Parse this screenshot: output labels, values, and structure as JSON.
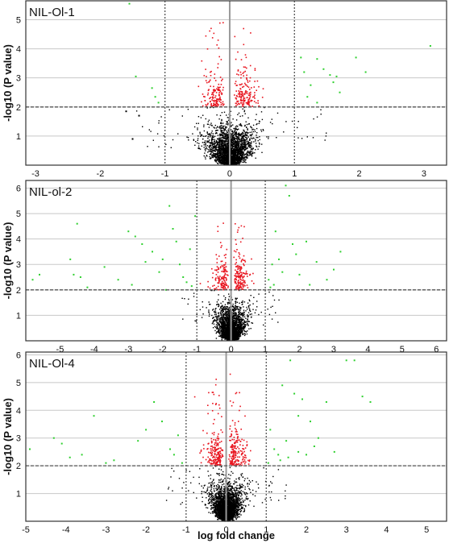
{
  "figure": {
    "ylabel": "-log10 (P value)",
    "xlabel": "log fold change"
  },
  "colors": {
    "background": "#ffffff",
    "grid": "#c8c8c8",
    "frame": "#333333",
    "zero_line": "#9a9a9a",
    "threshold_line": "#555555",
    "not_significant": "#000000",
    "significant_p": "#e8141e",
    "significant_p_and_fc": "#2fd02f"
  },
  "chart_data": [
    {
      "type": "scatter",
      "title": "NIL-Ol-1",
      "xlim": [
        -3.15,
        3.35
      ],
      "ylim": [
        0,
        5.65
      ],
      "x_ticks": [
        "-3",
        "-2",
        "-1",
        "0",
        "1",
        "2",
        "3"
      ],
      "x_tick_values": [
        -3,
        -2,
        -1,
        0,
        1,
        2,
        3
      ],
      "y_ticks": [
        "1",
        "2",
        "3",
        "4",
        "5"
      ],
      "y_tick_values": [
        1,
        2,
        3,
        4,
        5
      ],
      "grid": true,
      "fc_threshold": [
        -1,
        1
      ],
      "p_threshold": 2,
      "cloud": {
        "n_total": 2600,
        "n_sig": 320,
        "width": 0.35,
        "max_y": 4.9
      },
      "outlier_points": [
        [
          -1.55,
          5.55
        ],
        [
          -1.45,
          3.05
        ],
        [
          -1.2,
          2.65
        ],
        [
          -1.15,
          2.35
        ],
        [
          -1.1,
          2.15
        ],
        [
          -1.6,
          1.85
        ],
        [
          -1.4,
          1.7
        ],
        [
          -1.5,
          0.9
        ],
        [
          1.1,
          3.7
        ],
        [
          1.15,
          3.2
        ],
        [
          1.25,
          2.75
        ],
        [
          1.35,
          3.65
        ],
        [
          1.45,
          3.3
        ],
        [
          1.55,
          3.1
        ],
        [
          1.6,
          2.85
        ],
        [
          1.65,
          3.05
        ],
        [
          1.7,
          2.5
        ],
        [
          1.2,
          2.35
        ],
        [
          1.35,
          2.15
        ],
        [
          1.95,
          3.7
        ],
        [
          2.1,
          3.2
        ],
        [
          3.1,
          4.1
        ]
      ]
    },
    {
      "type": "scatter",
      "title": "NIL-ol-2",
      "xlim": [
        -6.0,
        6.3
      ],
      "ylim": [
        0,
        6.3
      ],
      "x_ticks": [
        "-5",
        "-4",
        "-3",
        "-2",
        "-1",
        "0",
        "1",
        "2",
        "3",
        "4",
        "5",
        "6"
      ],
      "x_tick_values": [
        -5,
        -4,
        -3,
        -2,
        -1,
        0,
        1,
        2,
        3,
        4,
        5,
        6
      ],
      "y_ticks": [
        "1",
        "2",
        "3",
        "4",
        "5",
        "6"
      ],
      "y_tick_values": [
        1,
        2,
        3,
        4,
        5,
        6
      ],
      "grid": true,
      "fc_threshold": [
        -1,
        1
      ],
      "p_threshold": 2,
      "cloud": {
        "n_total": 2300,
        "n_sig": 300,
        "width": 0.42,
        "max_y": 5.2
      },
      "outlier_points": [
        [
          -5.8,
          2.4
        ],
        [
          -5.6,
          2.6
        ],
        [
          -4.5,
          4.6
        ],
        [
          -4.6,
          2.6
        ],
        [
          -4.4,
          2.5
        ],
        [
          -4.2,
          2.1
        ],
        [
          -4.7,
          3.2
        ],
        [
          -3.7,
          2.9
        ],
        [
          -3.0,
          4.3
        ],
        [
          -2.8,
          4.1
        ],
        [
          -2.6,
          3.8
        ],
        [
          -2.5,
          3.1
        ],
        [
          -2.3,
          3.5
        ],
        [
          -2.1,
          2.7
        ],
        [
          -2.0,
          3.2
        ],
        [
          -1.8,
          5.3
        ],
        [
          -1.7,
          4.4
        ],
        [
          -1.6,
          3.9
        ],
        [
          -1.5,
          3.0
        ],
        [
          -1.4,
          2.5
        ],
        [
          -1.3,
          2.3
        ],
        [
          -1.2,
          3.6
        ],
        [
          -1.15,
          2.15
        ],
        [
          -1.05,
          4.9
        ],
        [
          -2.9,
          2.2
        ],
        [
          -3.3,
          2.4
        ],
        [
          -1.9,
          2.0
        ],
        [
          1.1,
          2.4
        ],
        [
          1.2,
          3.0
        ],
        [
          1.3,
          4.3
        ],
        [
          1.4,
          3.2
        ],
        [
          1.5,
          2.7
        ],
        [
          1.6,
          6.1
        ],
        [
          1.7,
          5.7
        ],
        [
          1.8,
          3.8
        ],
        [
          1.9,
          3.4
        ],
        [
          2.0,
          2.6
        ],
        [
          2.2,
          3.9
        ],
        [
          2.5,
          3.1
        ],
        [
          2.8,
          2.4
        ],
        [
          3.0,
          2.8
        ],
        [
          3.2,
          3.5
        ],
        [
          1.15,
          2.1
        ],
        [
          1.25,
          2.2
        ],
        [
          2.3,
          2.2
        ]
      ]
    },
    {
      "type": "scatter",
      "title": "NIL-Ol-4",
      "xlim": [
        -5.0,
        5.5
      ],
      "ylim": [
        0,
        6.1
      ],
      "x_ticks": [
        "-5",
        "-4",
        "-3",
        "-2",
        "-1",
        "0",
        "1",
        "2",
        "3",
        "4",
        "5"
      ],
      "x_tick_values": [
        -5,
        -4,
        -3,
        -2,
        -1,
        0,
        1,
        2,
        3,
        4,
        5
      ],
      "y_ticks": [
        "1",
        "2",
        "3",
        "4",
        "5",
        "6"
      ],
      "y_tick_values": [
        1,
        2,
        3,
        4,
        5,
        6
      ],
      "grid": true,
      "fc_threshold": [
        -1,
        1
      ],
      "p_threshold": 2,
      "cloud": {
        "n_total": 2700,
        "n_sig": 380,
        "width": 0.4,
        "max_y": 5.3
      },
      "outlier_points": [
        [
          -4.9,
          2.6
        ],
        [
          -4.3,
          3.0
        ],
        [
          -4.1,
          2.8
        ],
        [
          -3.9,
          2.3
        ],
        [
          -3.3,
          3.8
        ],
        [
          -3.6,
          2.4
        ],
        [
          -2.8,
          2.2
        ],
        [
          -2.2,
          2.9
        ],
        [
          -2.0,
          3.3
        ],
        [
          -1.8,
          4.3
        ],
        [
          -1.6,
          3.6
        ],
        [
          -1.4,
          2.6
        ],
        [
          -1.2,
          3.1
        ],
        [
          -1.1,
          2.1
        ],
        [
          -1.3,
          2.4
        ],
        [
          -3.0,
          2.1
        ],
        [
          1.05,
          2.1
        ],
        [
          1.1,
          3.3
        ],
        [
          1.2,
          2.6
        ],
        [
          1.3,
          2.4
        ],
        [
          1.4,
          4.9
        ],
        [
          1.5,
          2.9
        ],
        [
          1.6,
          5.8
        ],
        [
          1.7,
          4.6
        ],
        [
          1.8,
          3.8
        ],
        [
          1.9,
          4.4
        ],
        [
          2.0,
          2.4
        ],
        [
          2.1,
          3.6
        ],
        [
          2.3,
          3.0
        ],
        [
          2.5,
          4.3
        ],
        [
          2.7,
          2.5
        ],
        [
          3.0,
          5.8
        ],
        [
          3.2,
          5.8
        ],
        [
          3.4,
          4.5
        ],
        [
          3.6,
          4.3
        ],
        [
          1.35,
          2.2
        ],
        [
          1.55,
          2.3
        ],
        [
          1.8,
          2.5
        ],
        [
          2.2,
          2.7
        ]
      ]
    }
  ]
}
